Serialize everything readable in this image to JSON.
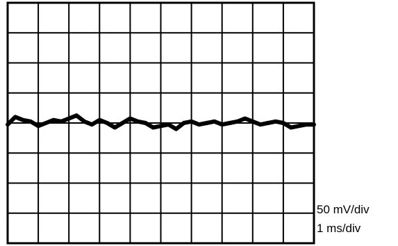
{
  "chart_data": {
    "type": "line",
    "title": "",
    "grid": true,
    "divisions": {
      "horizontal": 10,
      "vertical": 8
    },
    "x_unit_per_div": "1 ms",
    "y_unit_per_div": "50 mV",
    "xlim": [
      0,
      10
    ],
    "ylim": [
      -4,
      4
    ],
    "series": [
      {
        "color": "#000000",
        "x": [
          0,
          0.25,
          0.5,
          0.75,
          1,
          1.25,
          1.5,
          1.75,
          2,
          2.25,
          2.5,
          2.75,
          3,
          3.25,
          3.5,
          3.75,
          4,
          4.25,
          4.5,
          4.75,
          5,
          5.25,
          5.5,
          5.75,
          6,
          6.25,
          6.5,
          6.75,
          7,
          7.25,
          7.5,
          7.75,
          8,
          8.25,
          8.5,
          8.75,
          9,
          9.25,
          9.5,
          9.75,
          10
        ],
        "y": [
          -0.05,
          0.2,
          0.1,
          0.05,
          -0.1,
          0.0,
          0.1,
          0.05,
          0.15,
          0.25,
          0.05,
          -0.05,
          0.1,
          0.0,
          -0.15,
          0.0,
          0.15,
          0.05,
          0.0,
          -0.15,
          -0.1,
          -0.05,
          -0.2,
          0.0,
          0.05,
          -0.05,
          0.0,
          0.05,
          -0.05,
          0.0,
          0.05,
          0.15,
          0.05,
          -0.05,
          0.0,
          0.05,
          0.0,
          -0.15,
          -0.1,
          -0.05,
          -0.05
        ]
      }
    ]
  },
  "labels": {
    "v_scale": "50 mV/div",
    "h_scale": "1 ms/div"
  }
}
